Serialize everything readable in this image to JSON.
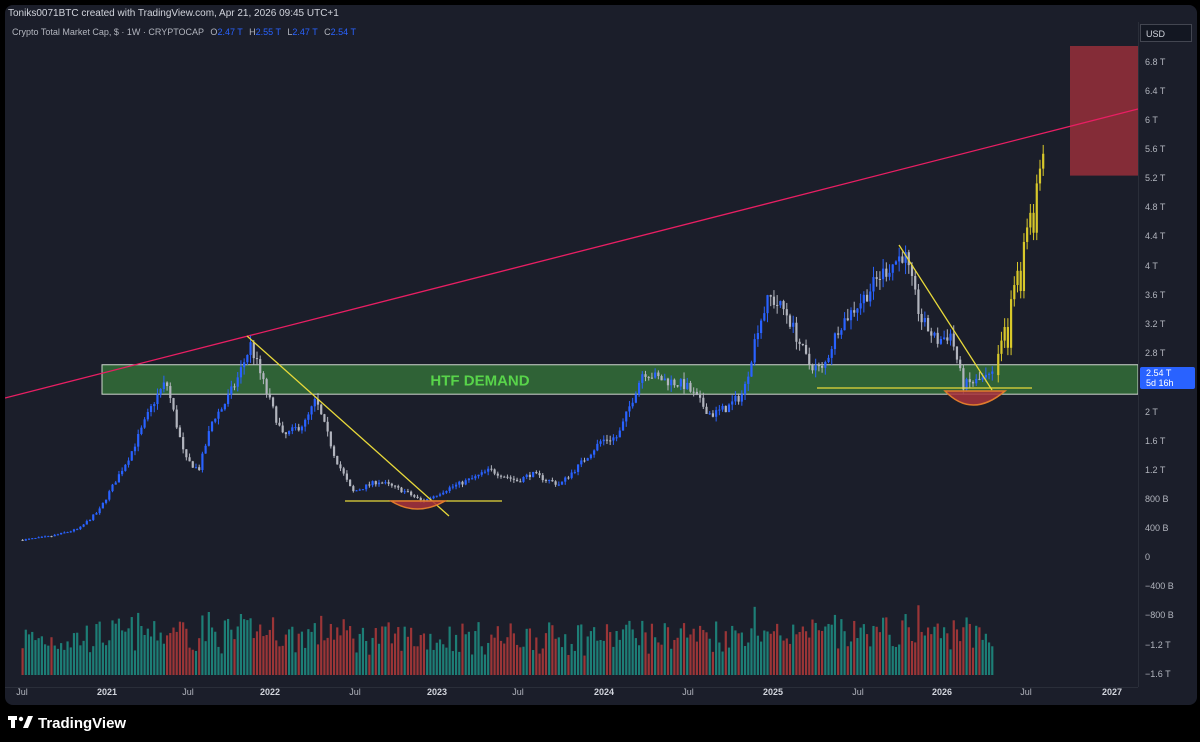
{
  "header": {
    "credit": "Toniks0071BTC created with TradingView.com, Apr 21, 2026 09:45 UTC+1"
  },
  "symbol": {
    "name": "Crypto Total Market Cap, $ · 1W · CRYPTOCAP",
    "o_label": "O",
    "o": "2.47 T",
    "h_label": "H",
    "h": "2.55 T",
    "l_label": "L",
    "l": "2.47 T",
    "c_label": "C",
    "c": "2.54 T"
  },
  "currency": "USD",
  "last_price": {
    "value": "2.54 T",
    "countdown": "5d 16h"
  },
  "footer": {
    "brand": "TradingView"
  },
  "colors": {
    "bull": "#2962ff",
    "bear": "#b2b5be",
    "projection": "#d8c82a",
    "resistance": "#e91e63",
    "demand_zone": "#3f9a3f",
    "target_zone": "#a8323c",
    "volume_up": "#1d8f84",
    "volume_down": "#b23a3a",
    "trendline": "#e8d93a"
  },
  "chart_data": {
    "type": "candlestick",
    "interval": "1W",
    "price_axis": {
      "ticks": [
        "6.8 T",
        "6.4 T",
        "6 T",
        "5.6 T",
        "5.2 T",
        "4.8 T",
        "4.4 T",
        "4 T",
        "3.6 T",
        "3.2 T",
        "2.8 T",
        "2 T",
        "1.6 T",
        "1.2 T",
        "800 B",
        "400 B",
        "0",
        "−400 B",
        "−800 B",
        "−1.2 T",
        "−1.6 T"
      ]
    },
    "time_axis": [
      "Jul",
      "2021",
      "Jul",
      "2022",
      "Jul",
      "2023",
      "Jul",
      "2024",
      "Jul",
      "2025",
      "Jul",
      "2026",
      "Jul",
      "2027"
    ],
    "close_path": [
      [
        "2020-07-01",
        0.3
      ],
      [
        "2020-09-01",
        0.35
      ],
      [
        "2020-11-01",
        0.45
      ],
      [
        "2020-12-15",
        0.7
      ],
      [
        "2021-01-15",
        1.05
      ],
      [
        "2021-02-20",
        1.45
      ],
      [
        "2021-04-15",
        2.2
      ],
      [
        "2021-05-10",
        2.45
      ],
      [
        "2021-06-20",
        1.4
      ],
      [
        "2021-07-20",
        1.25
      ],
      [
        "2021-08-20",
        1.95
      ],
      [
        "2021-09-10",
        2.1
      ],
      [
        "2021-10-10",
        2.45
      ],
      [
        "2021-11-10",
        2.95
      ],
      [
        "2021-12-15",
        2.3
      ],
      [
        "2022-01-20",
        1.7
      ],
      [
        "2022-03-10",
        1.9
      ],
      [
        "2022-04-01",
        2.2
      ],
      [
        "2022-05-15",
        1.4
      ],
      [
        "2022-06-20",
        0.95
      ],
      [
        "2022-08-15",
        1.1
      ],
      [
        "2022-10-15",
        0.95
      ],
      [
        "2022-11-20",
        0.82
      ],
      [
        "2023-01-15",
        1.0
      ],
      [
        "2023-03-15",
        1.15
      ],
      [
        "2023-04-15",
        1.25
      ],
      [
        "2023-06-15",
        1.1
      ],
      [
        "2023-07-15",
        1.2
      ],
      [
        "2023-09-15",
        1.05
      ],
      [
        "2023-10-25",
        1.3
      ],
      [
        "2023-12-15",
        1.65
      ],
      [
        "2024-01-20",
        1.7
      ],
      [
        "2024-03-15",
        2.6
      ],
      [
        "2024-04-15",
        2.5
      ],
      [
        "2024-06-15",
        2.4
      ],
      [
        "2024-08-10",
        2.0
      ],
      [
        "2024-09-15",
        2.1
      ],
      [
        "2024-10-20",
        2.3
      ],
      [
        "2024-11-20",
        3.2
      ],
      [
        "2024-12-15",
        3.6
      ],
      [
        "2025-01-20",
        3.4
      ],
      [
        "2025-03-10",
        2.7
      ],
      [
        "2025-04-10",
        2.6
      ],
      [
        "2025-05-15",
        3.2
      ],
      [
        "2025-07-10",
        3.6
      ],
      [
        "2025-08-15",
        3.9
      ],
      [
        "2025-10-05",
        4.2
      ],
      [
        "2025-11-10",
        3.3
      ],
      [
        "2025-12-15",
        3.0
      ],
      [
        "2026-01-15",
        3.1
      ],
      [
        "2026-02-10",
        2.4
      ],
      [
        "2026-03-10",
        2.45
      ],
      [
        "2026-04-21",
        2.54
      ]
    ],
    "projection": {
      "start": [
        "2026-04-21",
        2.54
      ],
      "end": [
        "2026-08-10",
        5.6
      ]
    },
    "levels": {
      "htf_demand_zone": [
        2.28,
        2.68
      ],
      "target_zone": [
        5.25,
        7.1
      ]
    },
    "annotations": [
      "HTF DEMAND"
    ]
  }
}
